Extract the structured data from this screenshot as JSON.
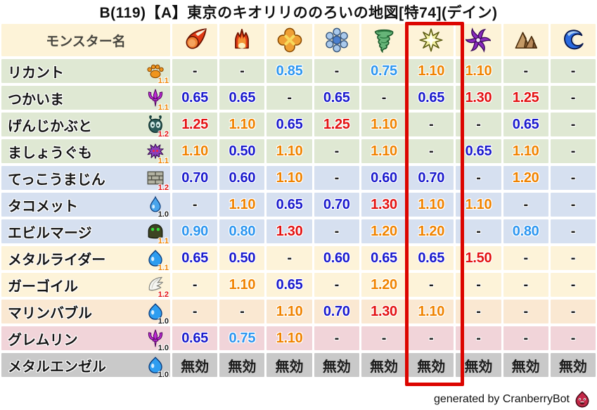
{
  "title": "B(119)【A】東京のキオリリののろいの地図[特74](デイン)",
  "footer": {
    "credit": "generated by CranberryBot",
    "icon": "red-slime-icon"
  },
  "colors": {
    "header_bg": "#fdf3d8",
    "highlight_border": "#dc0500",
    "value_strong_down": "#1a1acd",
    "value_mild_down": "#2d96f0",
    "value_up": "#f08300",
    "value_strong_up": "#e31212",
    "value_neutral": "#1c1c1c",
    "mult_low": "#1c1c1c",
    "mult_mid": "#f08300",
    "mult_high": "#e31212",
    "row_groups": {
      "green": "#dfe8d3",
      "blue": "#d6e0f0",
      "cream": "#fdf3d9",
      "peach": "#fae8d2",
      "pink": "#f1d4d9",
      "gray": "#c9c9c9"
    }
  },
  "table": {
    "name_header": "モンスター名",
    "columns": [
      {
        "id": "mera",
        "icon": "fireball-icon"
      },
      {
        "id": "gira",
        "icon": "flame-icon"
      },
      {
        "id": "io",
        "icon": "blast-cross-icon"
      },
      {
        "id": "hyado",
        "icon": "snowflake-icon"
      },
      {
        "id": "bagi",
        "icon": "tornado-icon"
      },
      {
        "id": "dein",
        "icon": "spark-star-icon",
        "highlighted": true
      },
      {
        "id": "dolma",
        "icon": "pinwheel-icon"
      },
      {
        "id": "rock",
        "icon": "mountain-icon"
      },
      {
        "id": "wave",
        "icon": "wave-swirl-icon"
      }
    ],
    "rows": [
      {
        "name": "リカント",
        "family_icon": "paw-icon",
        "mult": "1.1",
        "group": "green",
        "values": [
          "-",
          "-",
          "0.85",
          "-",
          "0.75",
          "1.10",
          "1.10",
          "-",
          "-"
        ]
      },
      {
        "name": "つかいま",
        "family_icon": "trident-icon",
        "mult": "1.1",
        "group": "green",
        "values": [
          "0.65",
          "0.65",
          "-",
          "0.65",
          "-",
          "0.65",
          "1.30",
          "1.25",
          "-"
        ]
      },
      {
        "name": "げんじかぶと",
        "family_icon": "beetle-icon",
        "mult": "1.2",
        "group": "green",
        "values": [
          "1.25",
          "1.10",
          "0.65",
          "1.25",
          "1.10",
          "-",
          "-",
          "0.65",
          "-"
        ]
      },
      {
        "name": "ましょうぐも",
        "family_icon": "spider-icon",
        "mult": "1.1",
        "group": "green",
        "values": [
          "1.10",
          "0.50",
          "1.10",
          "-",
          "1.10",
          "-",
          "0.65",
          "1.10",
          "-"
        ]
      },
      {
        "name": "てっこうまじん",
        "family_icon": "bricks-icon",
        "mult": "1.2",
        "group": "blue",
        "values": [
          "0.70",
          "0.60",
          "1.10",
          "-",
          "0.60",
          "0.70",
          "-",
          "1.20",
          "-"
        ]
      },
      {
        "name": "タコメット",
        "family_icon": "waterdrop-icon",
        "mult": "1.0",
        "group": "blue",
        "values": [
          "-",
          "1.10",
          "0.65",
          "0.70",
          "1.30",
          "1.10",
          "1.10",
          "-",
          "-"
        ]
      },
      {
        "name": "エビルマージ",
        "family_icon": "helmet-icon",
        "mult": "1.1",
        "group": "blue",
        "values": [
          "0.90",
          "0.80",
          "1.30",
          "-",
          "1.20",
          "1.20",
          "-",
          "0.80",
          "-"
        ]
      },
      {
        "name": "メタルライダー",
        "family_icon": "slime-icon",
        "mult": "1.1",
        "group": "cream",
        "values": [
          "0.65",
          "0.50",
          "-",
          "0.60",
          "0.65",
          "0.65",
          "1.50",
          "-",
          "-"
        ]
      },
      {
        "name": "ガーゴイル",
        "family_icon": "wing-icon",
        "mult": "1.2",
        "group": "cream",
        "values": [
          "-",
          "1.10",
          "0.65",
          "-",
          "1.20",
          "-",
          "-",
          "-",
          "-"
        ]
      },
      {
        "name": "マリンバブル",
        "family_icon": "slime-icon",
        "mult": "1.0",
        "group": "peach",
        "values": [
          "-",
          "-",
          "1.10",
          "0.70",
          "1.30",
          "1.10",
          "-",
          "-",
          "-"
        ]
      },
      {
        "name": "グレムリン",
        "family_icon": "trident-icon",
        "mult": "1.0",
        "group": "pink",
        "values": [
          "0.65",
          "0.75",
          "1.10",
          "-",
          "-",
          "-",
          "-",
          "-",
          "-"
        ]
      },
      {
        "name": "メタルエンゼル",
        "family_icon": "slime-icon",
        "mult": "1.0",
        "group": "gray",
        "values": [
          "無効",
          "無効",
          "無効",
          "無効",
          "無効",
          "無効",
          "無効",
          "無効",
          "無効"
        ]
      }
    ],
    "nullify_label": "無効"
  }
}
